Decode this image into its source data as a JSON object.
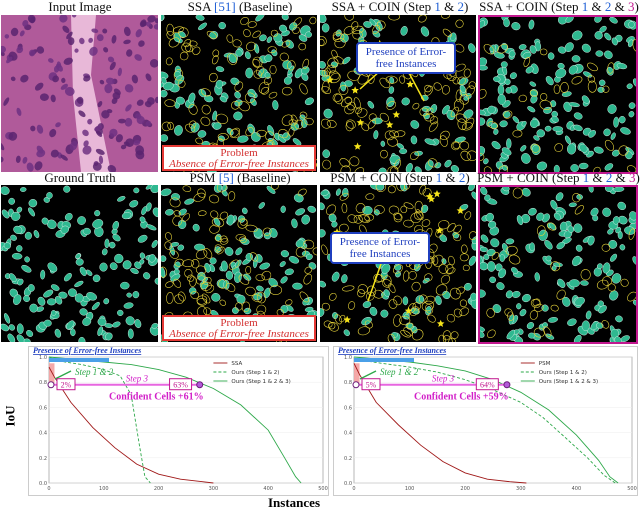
{
  "titles": {
    "input": "Input Image",
    "ssa_pre": "SSA ",
    "ssa_cite": "[51]",
    "ssa_post": " (Baseline)",
    "ssa_coin_12_pre": "SSA + COIN (Step ",
    "ssa_coin_12_s1": "1",
    "ssa_coin_12_amp": " & ",
    "ssa_coin_12_s2": "2",
    "ssa_coin_12_post": ")",
    "ssa_coin_123_pre": "SSA + COIN (Step ",
    "ssa_coin_123_s1": "1",
    "ssa_coin_123_amp1": " & ",
    "ssa_coin_123_s2": "2",
    "ssa_coin_123_amp2": " & ",
    "ssa_coin_123_s3": "3",
    "ssa_coin_123_post": ")",
    "gt": "Ground Truth",
    "psm_pre": "PSM ",
    "psm_cite": "[5]",
    "psm_post": " (Baseline)",
    "psm_coin_12_pre": "PSM + COIN (Step ",
    "psm_coin_12_s1": "1",
    "psm_coin_12_amp": " & ",
    "psm_coin_12_s2": "2",
    "psm_coin_12_post": ")",
    "psm_coin_123_pre": "PSM + COIN (Step ",
    "psm_coin_123_s1": "1",
    "psm_coin_123_amp1": " & ",
    "psm_coin_123_s2": "2",
    "psm_coin_123_amp2": " & ",
    "psm_coin_123_s3": "3",
    "psm_coin_123_post": ")"
  },
  "problem": {
    "line1": "Problem",
    "line2": "Absence of Error-free Instances"
  },
  "callout": {
    "line1": "Presence of Error-",
    "line2": "free Instances"
  },
  "colors": {
    "nucleus": "#2fb890",
    "outline": "#e6d33a",
    "star": "#f5e31a",
    "problem": "#e53935",
    "callout": "#1f3fbf",
    "step12": "#2ea84a",
    "step3": "#d21fc8",
    "highlight": "#c2188f"
  },
  "charts": [
    {
      "banner": "Presence of Error-free Instances",
      "step12_label": "Step 1 & 2",
      "step3_label": "Step 3",
      "pct_a": "2%",
      "pct_b": "63%",
      "confident": "Confident Cells +61%",
      "legend": [
        "SSA",
        "Ours (Step 1 & 2)",
        "Ours (Step 1 & 2 & 3)"
      ],
      "yticks": [
        "1.0",
        "0.8",
        "0.6",
        "0.4",
        "0.2",
        "0.0"
      ],
      "xticks": [
        "0",
        "100",
        "200",
        "300",
        "400",
        "500"
      ]
    },
    {
      "banner": "Presence of Error-free Instances",
      "step12_label": "Step 1 & 2",
      "step3_label": "Step 3",
      "pct_a": "5%",
      "pct_b": "64%",
      "confident": "Confident Cells +59%",
      "legend": [
        "PSM",
        "Ours (Step 1 & 2)",
        "Ours (Step 1 & 2 & 3)"
      ],
      "yticks": [
        "1.0",
        "0.8",
        "0.6",
        "0.4",
        "0.2",
        "0.0"
      ],
      "xticks": [
        "0",
        "100",
        "200",
        "300",
        "400",
        "500"
      ]
    }
  ],
  "axes": {
    "ylabel": "IoU",
    "xlabel": "Instances"
  },
  "chart_data": [
    {
      "type": "line",
      "xlabel": "Instances",
      "ylabel": "IoU",
      "xlim": [
        0,
        500
      ],
      "ylim": [
        0,
        1.0
      ],
      "series": [
        {
          "name": "SSA",
          "x": [
            0,
            10,
            40,
            80,
            120,
            160,
            200,
            240,
            280,
            300
          ],
          "y": [
            0.92,
            0.84,
            0.64,
            0.44,
            0.28,
            0.15,
            0.07,
            0.03,
            0.01,
            0.0
          ]
        },
        {
          "name": "Ours (Step 1 & 2)",
          "x": [
            0,
            10,
            30,
            60,
            100,
            130,
            150,
            165,
            175,
            185
          ],
          "y": [
            1.0,
            0.98,
            0.96,
            0.94,
            0.9,
            0.85,
            0.7,
            0.3,
            0.05,
            0.0
          ]
        },
        {
          "name": "Ours (Step 1 & 2 & 3)",
          "x": [
            0,
            50,
            100,
            150,
            200,
            250,
            300,
            350,
            400,
            430,
            450,
            460
          ],
          "y": [
            1.0,
            0.98,
            0.96,
            0.94,
            0.9,
            0.84,
            0.75,
            0.62,
            0.42,
            0.2,
            0.05,
            0.0
          ]
        }
      ]
    },
    {
      "type": "line",
      "xlabel": "Instances",
      "ylabel": "IoU",
      "xlim": [
        0,
        500
      ],
      "ylim": [
        0,
        1.0
      ],
      "series": [
        {
          "name": "PSM",
          "x": [
            0,
            10,
            40,
            80,
            120,
            160,
            200,
            240,
            280,
            310
          ],
          "y": [
            0.95,
            0.86,
            0.64,
            0.46,
            0.3,
            0.17,
            0.08,
            0.03,
            0.01,
            0.0
          ]
        },
        {
          "name": "Ours (Step 1 & 2)",
          "x": [
            0,
            20,
            50,
            100,
            150,
            200,
            250,
            300,
            340,
            380,
            420,
            450,
            470
          ],
          "y": [
            0.99,
            0.97,
            0.95,
            0.92,
            0.88,
            0.82,
            0.74,
            0.64,
            0.52,
            0.36,
            0.2,
            0.06,
            0.0
          ]
        },
        {
          "name": "Ours (Step 1 & 2 & 3)",
          "x": [
            0,
            50,
            100,
            150,
            200,
            250,
            300,
            350,
            400,
            440,
            460,
            475
          ],
          "y": [
            1.0,
            0.98,
            0.96,
            0.93,
            0.89,
            0.82,
            0.72,
            0.58,
            0.38,
            0.18,
            0.05,
            0.0
          ]
        }
      ]
    }
  ]
}
